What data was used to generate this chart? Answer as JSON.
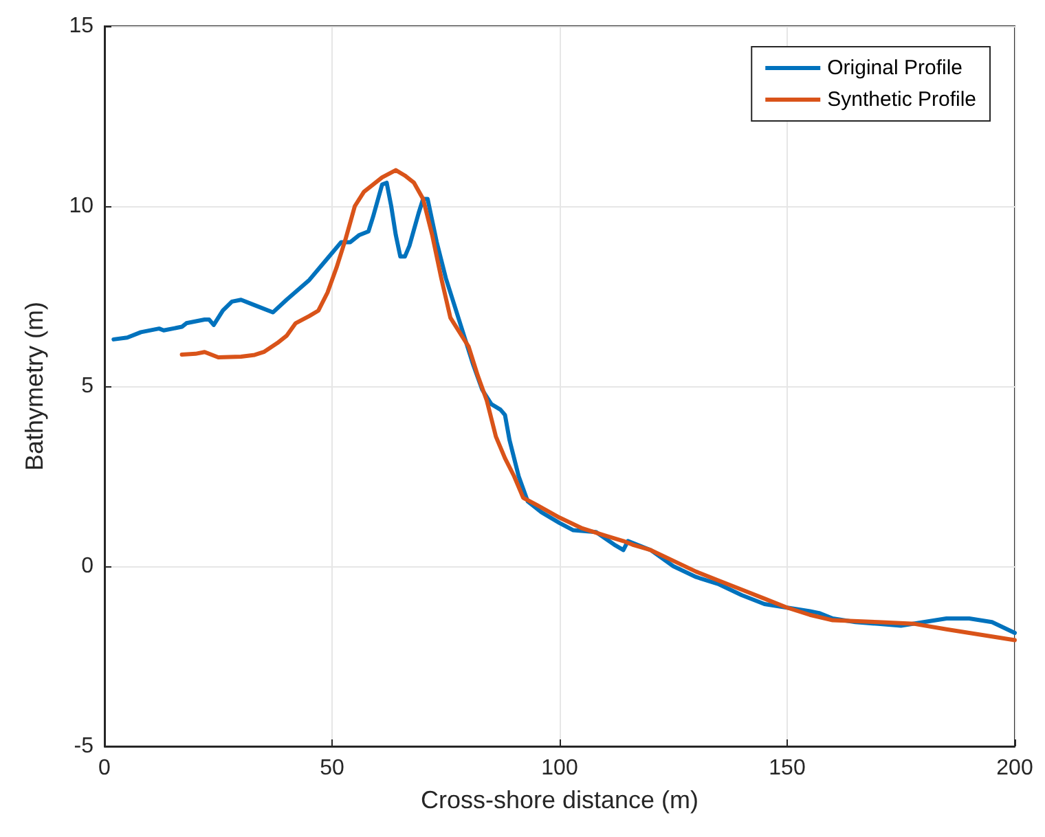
{
  "chart_data": {
    "type": "line",
    "xlabel": "Cross-shore distance (m)",
    "ylabel": "Bathymetry (m)",
    "xlim": [
      0,
      200
    ],
    "xticks": [
      0,
      50,
      100,
      150,
      200
    ],
    "ylim": [
      -5,
      15
    ],
    "yticks": [
      -5,
      0,
      5,
      10,
      15
    ],
    "grid": true,
    "legend": "top right",
    "line_style": "solid",
    "marker": "none",
    "series": [
      {
        "name": "Original Profile",
        "color": "#0072bd",
        "x": [
          2,
          5,
          8,
          12,
          13,
          17,
          18,
          22,
          23,
          24,
          26,
          28,
          30,
          33,
          37,
          40,
          45,
          49,
          52,
          54,
          56,
          58,
          59,
          61,
          62,
          63,
          64,
          65,
          66,
          67,
          69,
          70,
          71,
          73,
          75,
          77,
          79,
          81,
          83,
          85,
          87,
          88,
          89,
          91,
          93,
          96,
          100,
          103,
          108,
          112,
          114,
          115,
          120,
          125,
          130,
          135,
          140,
          145,
          150,
          155,
          157,
          160,
          165,
          170,
          175,
          180,
          185,
          190,
          195,
          200
        ],
        "values": [
          6.3,
          6.35,
          6.5,
          6.6,
          6.55,
          6.65,
          6.75,
          6.85,
          6.85,
          6.7,
          7.1,
          7.35,
          7.4,
          7.25,
          7.05,
          7.4,
          7.95,
          8.55,
          9.0,
          9.0,
          9.2,
          9.3,
          9.7,
          10.6,
          10.65,
          10.0,
          9.2,
          8.6,
          8.6,
          8.9,
          9.8,
          10.2,
          10.2,
          9.0,
          8.0,
          7.2,
          6.4,
          5.6,
          4.9,
          4.5,
          4.35,
          4.2,
          3.5,
          2.5,
          1.8,
          1.5,
          1.2,
          1.0,
          0.95,
          0.6,
          0.45,
          0.7,
          0.45,
          0.0,
          -0.3,
          -0.5,
          -0.8,
          -1.05,
          -1.15,
          -1.25,
          -1.3,
          -1.45,
          -1.55,
          -1.6,
          -1.65,
          -1.55,
          -1.45,
          -1.45,
          -1.55,
          -1.85
        ]
      },
      {
        "name": "Synthetic Profile",
        "color": "#d95319",
        "x": [
          17,
          20,
          22,
          25,
          30,
          33,
          35,
          38,
          40,
          42,
          45,
          47,
          49,
          51,
          53,
          55,
          57,
          59,
          61,
          64,
          66,
          68,
          70,
          72,
          74,
          76,
          78,
          80,
          82,
          84,
          86,
          88,
          90,
          92,
          95,
          100,
          105,
          110,
          114,
          116,
          120,
          125,
          130,
          135,
          140,
          145,
          150,
          155,
          160,
          170,
          178,
          185,
          190,
          195,
          200
        ],
        "values": [
          5.88,
          5.9,
          5.95,
          5.8,
          5.82,
          5.87,
          5.95,
          6.2,
          6.4,
          6.75,
          6.95,
          7.1,
          7.6,
          8.3,
          9.1,
          10.0,
          10.4,
          10.6,
          10.8,
          11.0,
          10.85,
          10.65,
          10.2,
          9.2,
          8.0,
          6.9,
          6.5,
          6.1,
          5.3,
          4.6,
          3.6,
          3.0,
          2.5,
          1.9,
          1.7,
          1.35,
          1.05,
          0.85,
          0.7,
          0.6,
          0.45,
          0.15,
          -0.15,
          -0.4,
          -0.65,
          -0.9,
          -1.15,
          -1.35,
          -1.5,
          -1.55,
          -1.6,
          -1.75,
          -1.85,
          -1.95,
          -2.05
        ]
      }
    ]
  }
}
